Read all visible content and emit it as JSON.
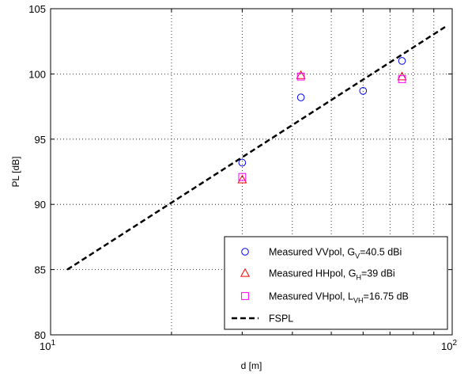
{
  "chart_data": {
    "type": "scatter",
    "xscale": "log",
    "xlim": [
      10,
      100
    ],
    "ylim": [
      80,
      105
    ],
    "grid": true,
    "legend_position": "bottom-right",
    "xlabel": "d [m]",
    "ylabel": "PL [dB]",
    "x_ticks": [
      {
        "value": 10,
        "base": "10",
        "exp": "1"
      },
      {
        "value": 100,
        "base": "10",
        "exp": "2"
      }
    ],
    "y_ticks": [
      80,
      85,
      90,
      95,
      100,
      105
    ],
    "y_tick_labels": [
      "80",
      "85",
      "90",
      "95",
      "100",
      "105"
    ],
    "series": [
      {
        "name_parts": [
          "Measured VVpol, G",
          "V",
          "=40.5 dBi"
        ],
        "marker": "circle",
        "color": "#0000ff",
        "x": [
          30,
          42,
          60,
          75
        ],
        "y": [
          93.2,
          98.2,
          98.7,
          101.0
        ]
      },
      {
        "name_parts": [
          "Measured HHpol, G",
          "H",
          "=39 dBi"
        ],
        "marker": "triangle",
        "color": "#ff0000",
        "x": [
          30,
          42,
          75
        ],
        "y": [
          91.9,
          99.9,
          99.8
        ]
      },
      {
        "name_parts": [
          "Measured VHpol, L",
          "VH",
          "=16.75 dB"
        ],
        "marker": "square",
        "color": "#ff00ff",
        "x": [
          30,
          42,
          75
        ],
        "y": [
          92.1,
          99.8,
          99.6
        ]
      },
      {
        "name_parts": [
          "FSPL",
          "",
          ""
        ],
        "marker": "dashed-line",
        "color": "#000000",
        "x": [
          11,
          96
        ],
        "y": [
          85.0,
          103.6
        ]
      }
    ]
  }
}
